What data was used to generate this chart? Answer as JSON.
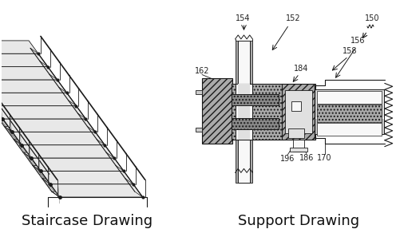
{
  "title_left": "Staircase Drawing",
  "title_right": "Support Drawing",
  "title_fontsize": 13,
  "bg_color": "#ffffff",
  "line_color": "#1a1a1a",
  "label_color": "#222222",
  "label_fontsize": 7.0
}
